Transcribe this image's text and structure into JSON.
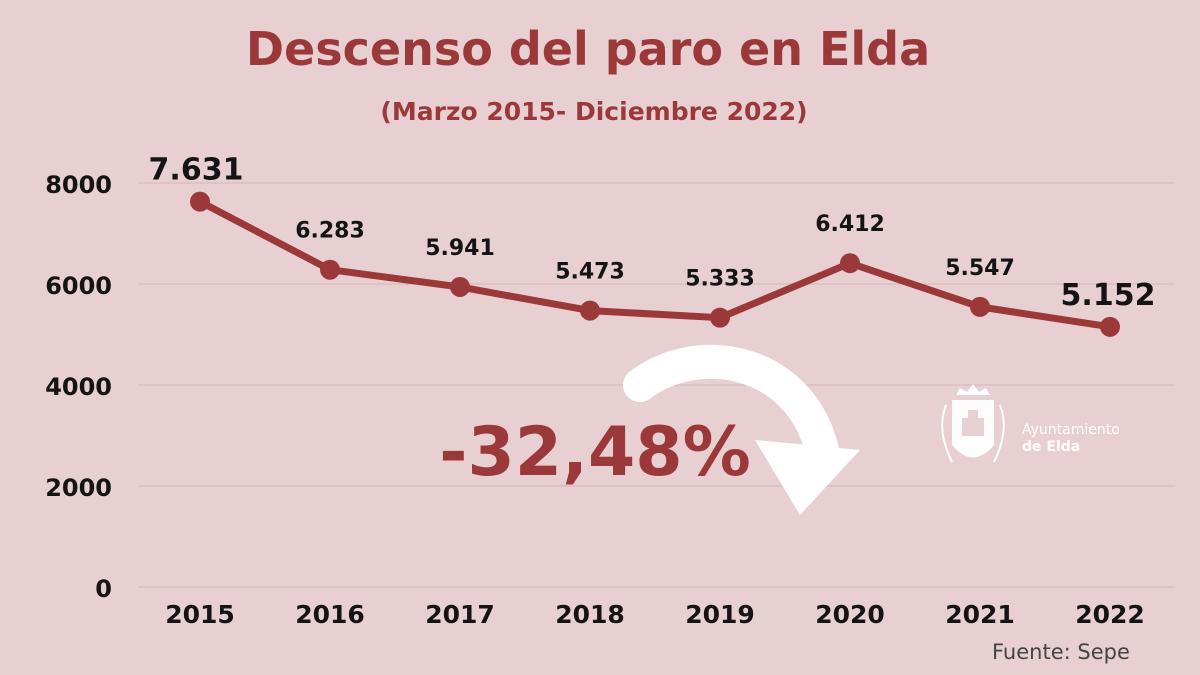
{
  "chart_data": {
    "type": "line",
    "title": "Descenso del paro en Elda",
    "subtitle": "(Marzo 2015- Diciembre 2022)",
    "categories": [
      "2015",
      "2016",
      "2017",
      "2018",
      "2019",
      "2020",
      "2021",
      "2022"
    ],
    "series": [
      {
        "values": [
          7631,
          6283,
          5941,
          5473,
          5333,
          6412,
          5547,
          5152
        ],
        "labels": [
          "7.631",
          "6.283",
          "5.941",
          "5.473",
          "5.333",
          "6.412",
          "5.547",
          "5.152"
        ]
      }
    ],
    "ylim": [
      0,
      8000
    ],
    "yticks": [
      "0",
      "2000",
      "4000",
      "6000",
      "8000"
    ],
    "grid": true,
    "annotation": "-32,48%",
    "source": "Fuente: Sepe",
    "logo_text": [
      "Ayuntamiento",
      "de Elda"
    ]
  },
  "colors": {
    "background": "#e8cfd1",
    "accent": "#9b383a",
    "text": "#141414",
    "grid": "#d6b4b6",
    "arrow": "#ffffff"
  }
}
